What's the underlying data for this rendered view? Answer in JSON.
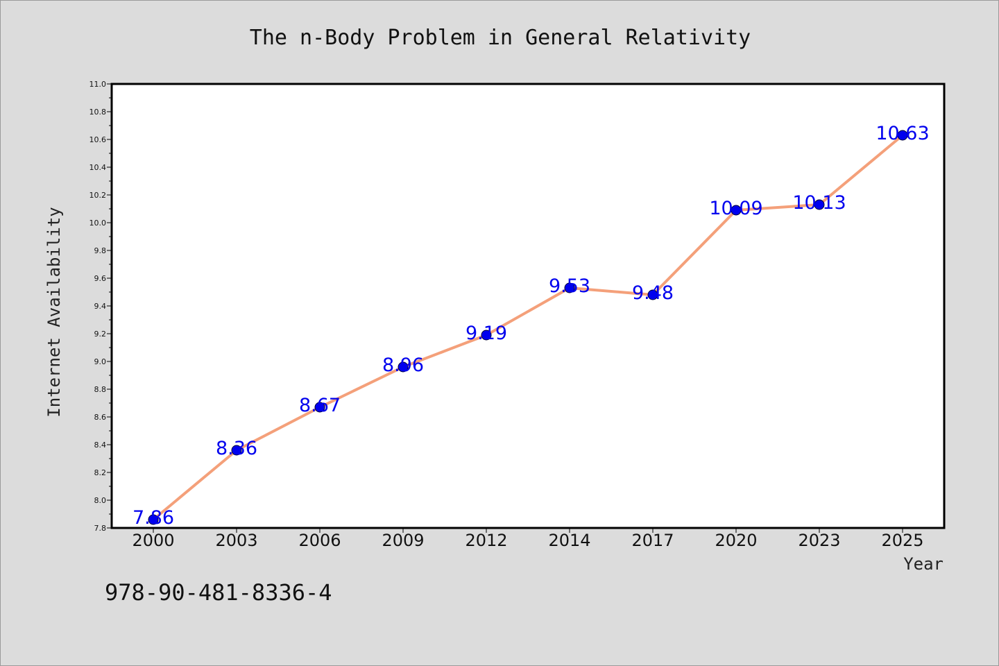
{
  "chart_data": {
    "type": "line",
    "title": "The n-Body Problem in General Relativity",
    "xlabel": "Year",
    "ylabel": "Internet Availability",
    "categories": [
      "2000",
      "2003",
      "2006",
      "2009",
      "2012",
      "2014",
      "2017",
      "2020",
      "2023",
      "2025"
    ],
    "series": [
      {
        "values": [
          7.86,
          8.36,
          8.67,
          8.96,
          9.19,
          9.53,
          9.48,
          10.09,
          10.13,
          10.63
        ],
        "labels": [
          "7.86",
          "8.36",
          "8.67",
          "8.96",
          "9.19",
          "9.53",
          "9.48",
          "10.09",
          "10.13",
          "10.63"
        ],
        "line_color": "#f4a07a",
        "marker_color": "#0000ee"
      }
    ],
    "ylim": [
      7.8,
      11.0
    ],
    "yticks": [
      "7.8",
      "8.0",
      "8.2",
      "8.4",
      "8.6",
      "8.8",
      "9.0",
      "9.2",
      "9.4",
      "9.6",
      "9.8",
      "10.0",
      "10.2",
      "10.4",
      "10.6",
      "10.8",
      "11.0"
    ],
    "grid": false,
    "legend": "none"
  },
  "footer": {
    "isbn": "978-90-481-8336-4"
  }
}
